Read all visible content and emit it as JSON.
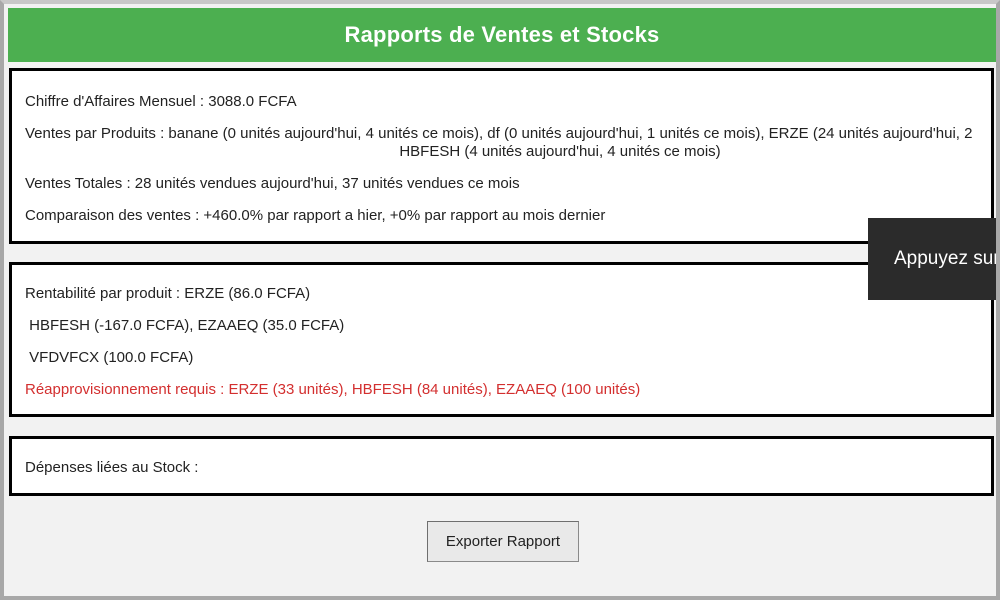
{
  "header": {
    "title": "Rapports de Ventes et Stocks"
  },
  "sales_panel": {
    "revenue": "Chiffre d'Affaires Mensuel : 3088.0 FCFA",
    "sales_by_product_line1": "Ventes par Produits : banane (0 unités aujourd'hui, 4 unités ce mois), df (0 unités aujourd'hui, 1 unités ce mois), ERZE (24 unités aujourd'hui, 2",
    "sales_by_product_line2": "HBFESH (4 unités aujourd'hui, 4 unités ce mois)",
    "total_sales": "Ventes Totales : 28 unités vendues aujourd'hui, 37 unités vendues ce mois",
    "comparison": "Comparaison des ventes : +460.0% par rapport a hier, +0% par rapport au mois dernier"
  },
  "profit_panel": {
    "line1": "Rentabilité par produit : ERZE (86.0 FCFA)",
    "line2": " HBFESH (-167.0 FCFA), EZAAEQ (35.0 FCFA)",
    "line3": " VFDVFCX (100.0 FCFA)",
    "restock": "Réapprovisionnement requis : ERZE (33 unités), HBFESH (84 unités), EZAAEQ (100 unités)"
  },
  "expenses_panel": {
    "label": "Dépenses liées au Stock :"
  },
  "actions": {
    "export_label": "Exporter Rapport"
  },
  "toast": {
    "text": "Appuyez sur"
  },
  "colors": {
    "header_bg": "#4caf50",
    "alert_text": "#d32f2f",
    "toast_bg": "#2b2b2b"
  }
}
